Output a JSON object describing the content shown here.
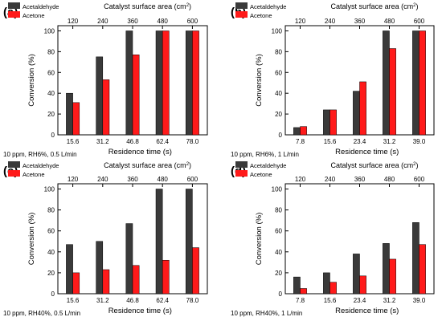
{
  "legend_labels": [
    "Acetaldehyde",
    "Acetone"
  ],
  "colors": {
    "acetaldehyde": "#3a3a3a",
    "acetone": "#ff1a1a",
    "axis": "#000000"
  },
  "chart_data": [
    {
      "type": "bar",
      "panel_label": "(a)",
      "condition": "10 ppm, RH6%, 0.5 L/min",
      "xlabel": "Residence time (s)",
      "ylabel": "Conversion (%)",
      "top_xlabel": "Catalyst surface area (cm",
      "top_xlabel_sup": "2",
      "top_xlabel_end": ")",
      "categories": [
        "15.6",
        "31.2",
        "46.8",
        "62.4",
        "78.0"
      ],
      "top_categories": [
        "120",
        "240",
        "360",
        "480",
        "600"
      ],
      "series": [
        {
          "name": "Acetaldehyde",
          "values": [
            40,
            75,
            100,
            100,
            100
          ]
        },
        {
          "name": "Acetone",
          "values": [
            31,
            53,
            77,
            100,
            100
          ]
        }
      ],
      "ylim": [
        0,
        105
      ],
      "yticks": [
        "0",
        "20",
        "40",
        "60",
        "80",
        "100"
      ],
      "legend_position": "top-left"
    },
    {
      "type": "bar",
      "panel_label": "(b)",
      "condition": "10 ppm, RH6%, 1 L/min",
      "xlabel": "Residence time (s)",
      "ylabel": "Conversion (%)",
      "top_xlabel": "Catalyst surface area (cm",
      "top_xlabel_sup": "2",
      "top_xlabel_end": ")",
      "categories": [
        "7.8",
        "15.6",
        "23.4",
        "31.2",
        "39.0"
      ],
      "top_categories": [
        "120",
        "240",
        "360",
        "480",
        "600"
      ],
      "series": [
        {
          "name": "Acetaldehyde",
          "values": [
            7,
            24,
            42,
            100,
            100
          ]
        },
        {
          "name": "Acetone",
          "values": [
            8,
            24,
            51,
            83,
            100
          ]
        }
      ],
      "ylim": [
        0,
        105
      ],
      "yticks": [
        "0",
        "20",
        "40",
        "60",
        "80",
        "100"
      ],
      "legend_position": "top-left"
    },
    {
      "type": "bar",
      "panel_label": "(c)",
      "condition": "10 ppm, RH40%, 0.5 L/min",
      "xlabel": "Residence time (s)",
      "ylabel": "Conversion (%)",
      "top_xlabel": "Catalyst surface area (cm",
      "top_xlabel_sup": "2",
      "top_xlabel_end": ")",
      "categories": [
        "15.6",
        "31.2",
        "46.8",
        "62.4",
        "78.0"
      ],
      "top_categories": [
        "120",
        "240",
        "360",
        "480",
        "600"
      ],
      "series": [
        {
          "name": "Acetaldehyde",
          "values": [
            47,
            50,
            67,
            100,
            100
          ]
        },
        {
          "name": "Acetone",
          "values": [
            20,
            23,
            27,
            32,
            44
          ]
        }
      ],
      "ylim": [
        0,
        105
      ],
      "yticks": [
        "0",
        "20",
        "40",
        "60",
        "80",
        "100"
      ],
      "legend_position": "top-left"
    },
    {
      "type": "bar",
      "panel_label": "(d)",
      "condition": "10 ppm, RH40%, 1 L/min",
      "xlabel": "Residence time (s)",
      "ylabel": "Conversion (%)",
      "top_xlabel": "Catalyst surface area (cm",
      "top_xlabel_sup": "2",
      "top_xlabel_end": ")",
      "categories": [
        "7.8",
        "15.6",
        "23.4",
        "31.2",
        "39.0"
      ],
      "top_categories": [
        "120",
        "240",
        "360",
        "480",
        "600"
      ],
      "series": [
        {
          "name": "Acetaldehyde",
          "values": [
            16,
            20,
            38,
            48,
            68
          ]
        },
        {
          "name": "Acetone",
          "values": [
            5,
            11,
            17,
            33,
            47
          ]
        }
      ],
      "ylim": [
        0,
        105
      ],
      "yticks": [
        "0",
        "20",
        "40",
        "60",
        "80",
        "100"
      ],
      "legend_position": "top-left"
    }
  ]
}
